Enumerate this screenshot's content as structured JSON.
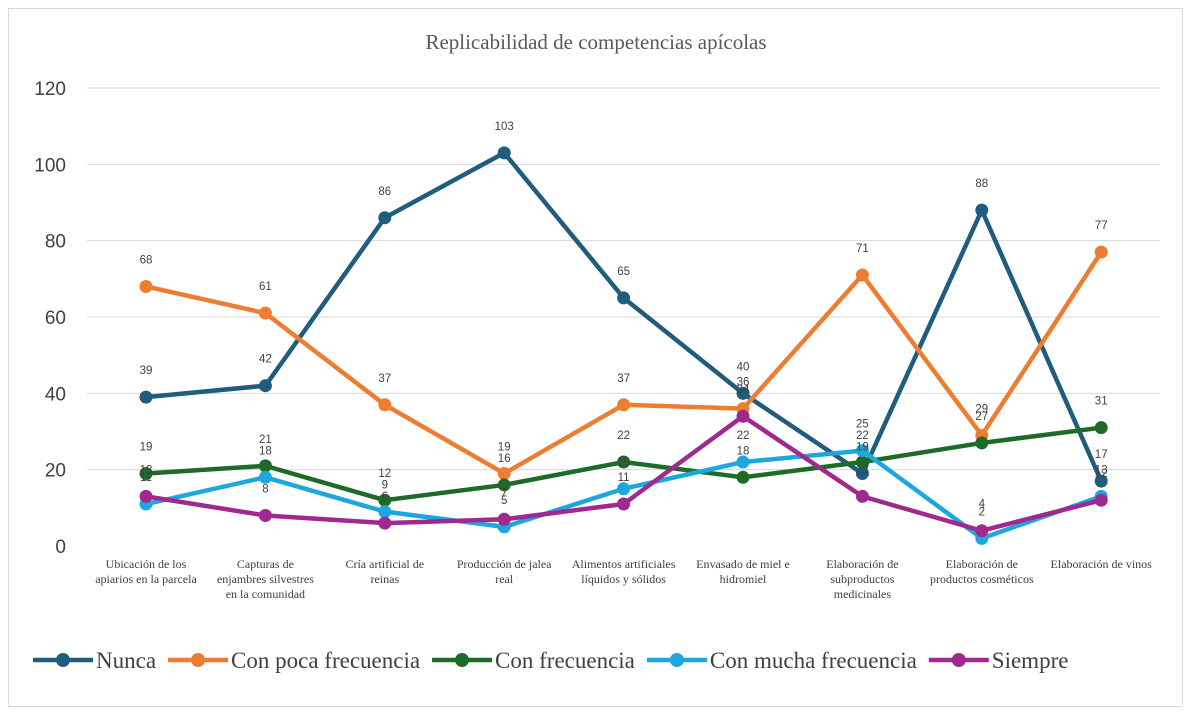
{
  "chart_data": {
    "type": "line",
    "title": "Replicabilidad de competencias apícolas",
    "ylim": [
      0,
      120
    ],
    "yticks": [
      0,
      20,
      40,
      60,
      80,
      100,
      120
    ],
    "grid": true,
    "legend_position": "bottom",
    "categories": [
      [
        "Ubicación de los",
        "apiarios en la parcela"
      ],
      [
        "Capturas de",
        "enjambres silvestres",
        "en la comunidad"
      ],
      [
        "Cría artificial de",
        "reinas"
      ],
      [
        "Producción de jalea",
        "real"
      ],
      [
        "Alimentos artificiales",
        "líquidos y sólidos"
      ],
      [
        "Envasado de    miel e",
        "hidromiel"
      ],
      [
        "Elaboración de",
        "subproductos",
        "medicinales"
      ],
      [
        "Elaboración de",
        "productos cosméticos"
      ],
      [
        "Elaboración de vinos"
      ]
    ],
    "series": [
      {
        "name": "Nunca",
        "color": "#1f5c7e",
        "values": [
          39,
          42,
          86,
          103,
          65,
          40,
          19,
          88,
          17
        ]
      },
      {
        "name": "Con poca frecuencia",
        "color": "#ed7d31",
        "values": [
          68,
          61,
          37,
          19,
          37,
          36,
          71,
          29,
          77
        ]
      },
      {
        "name": "Con frecuencia",
        "color": "#1e6b28",
        "values": [
          19,
          21,
          12,
          16,
          22,
          18,
          22,
          27,
          31
        ]
      },
      {
        "name": "Con mucha frecuencia",
        "color": "#1ea6de",
        "values": [
          11,
          18,
          9,
          5,
          15,
          22,
          25,
          2,
          13
        ]
      },
      {
        "name": "Siempre",
        "color": "#a0298f",
        "values": [
          13,
          8,
          6,
          7,
          11,
          34,
          13,
          4,
          12
        ]
      }
    ]
  }
}
